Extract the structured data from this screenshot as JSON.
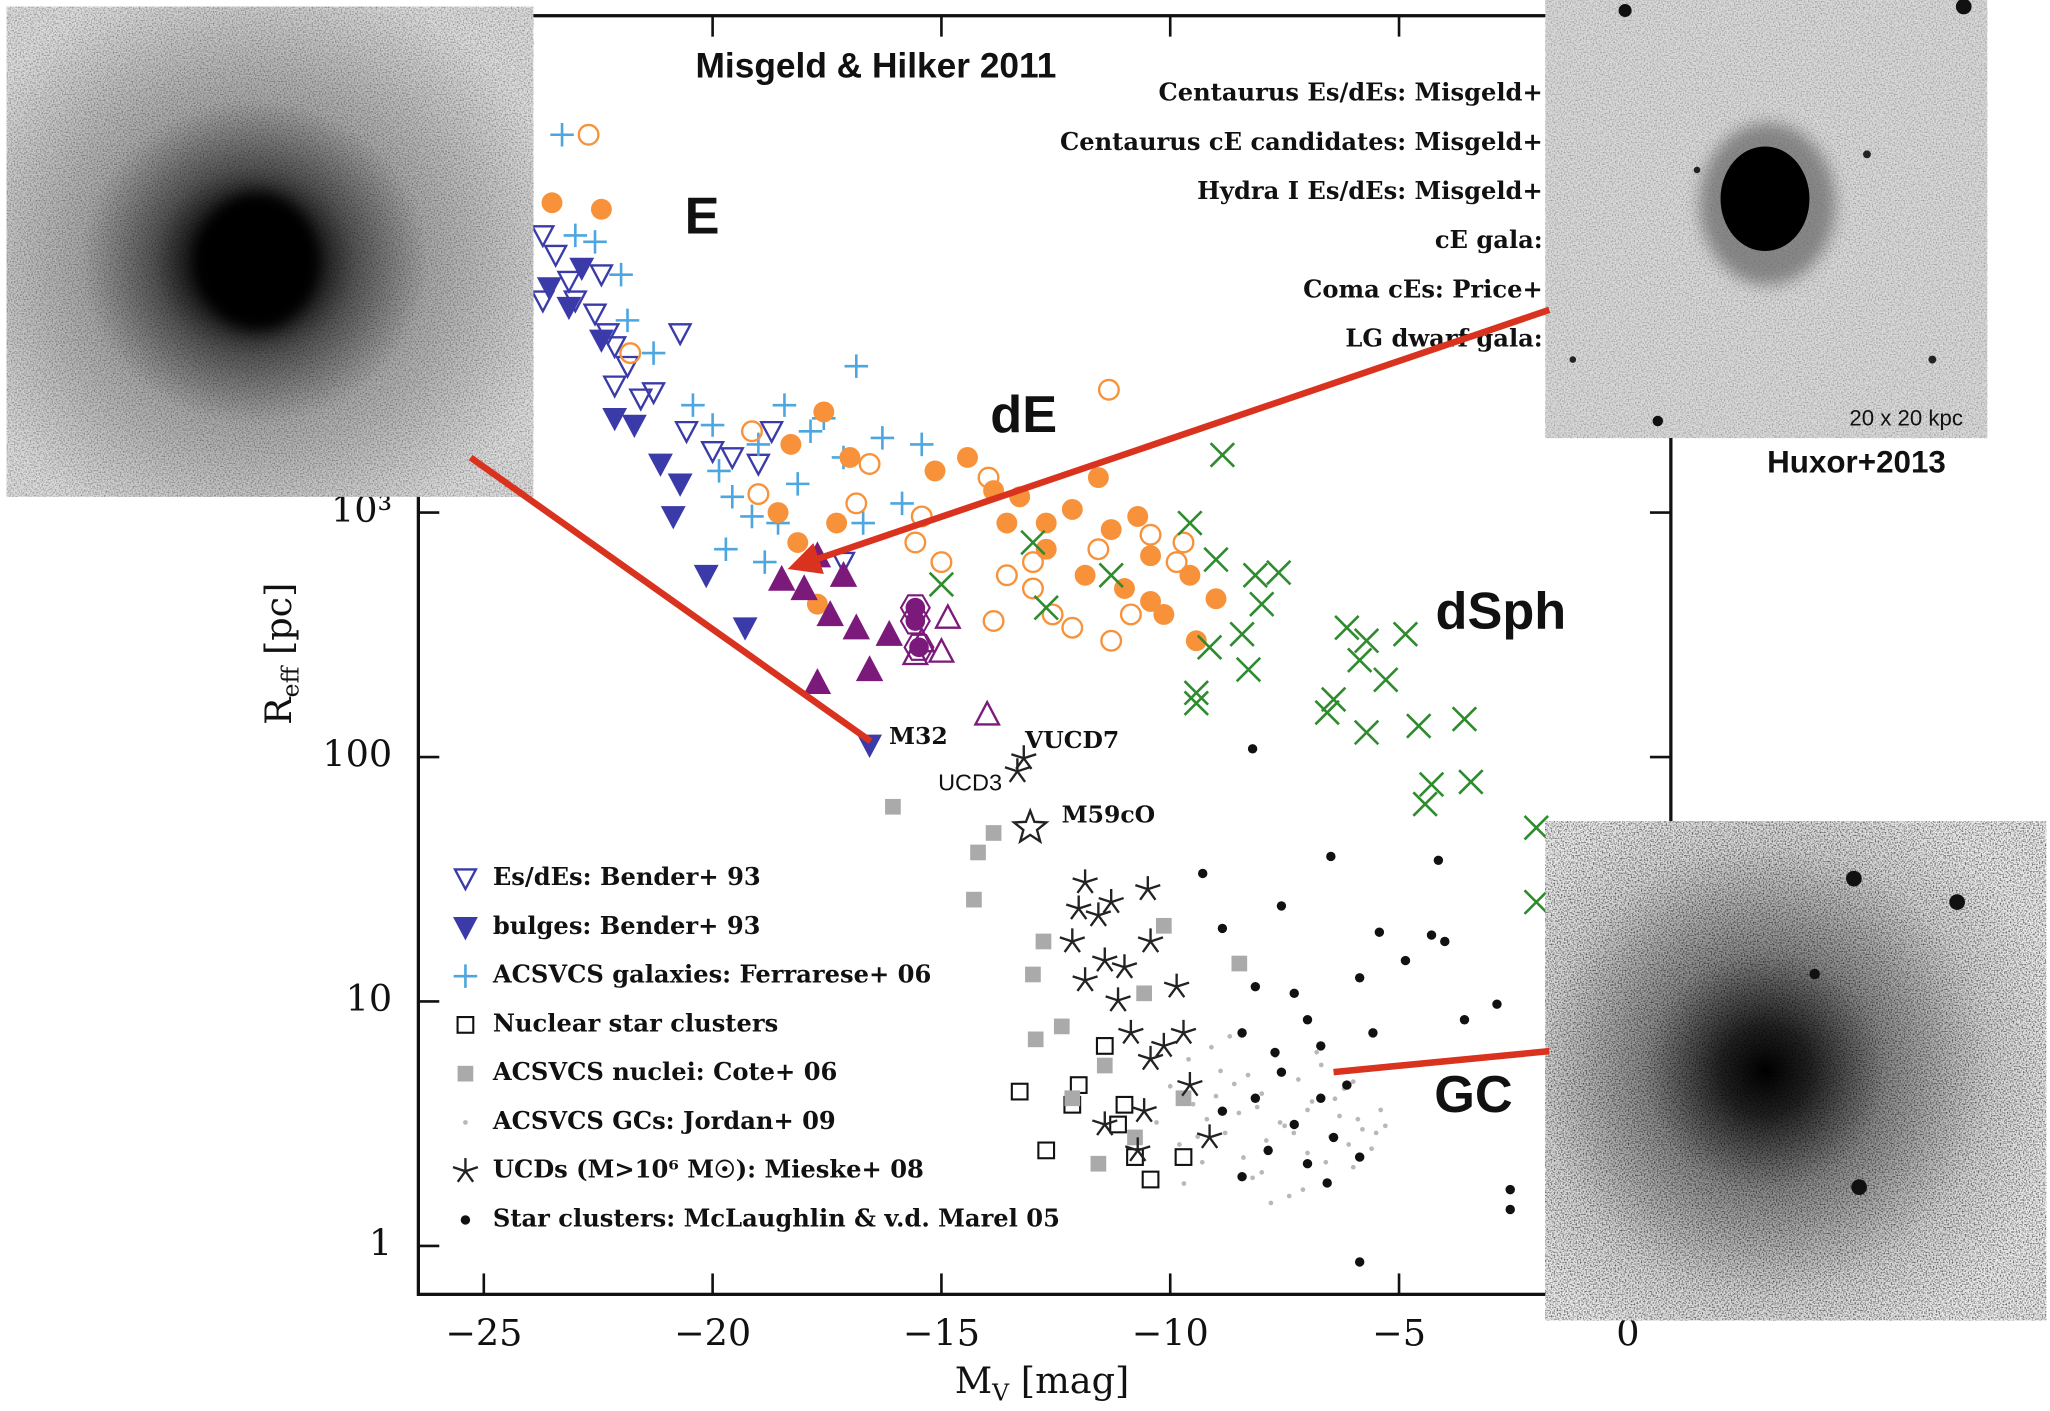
{
  "chart_data": {
    "type": "scatter",
    "title": "Misgeld & Hilker 2011",
    "xlabel": [
      "M",
      "V",
      " [mag]"
    ],
    "ylabel": [
      "R",
      "eff",
      " [pc]"
    ],
    "xlim": [
      -26.43,
      0.94
    ],
    "xticks": [
      {
        "value": -25,
        "label": "−25"
      },
      {
        "value": -20,
        "label": "−20"
      },
      {
        "value": -15,
        "label": "−15"
      },
      {
        "value": -10,
        "label": "−10"
      },
      {
        "value": -5,
        "label": "−5"
      },
      0
    ],
    "ylim": [
      0.634,
      107700
    ],
    "yscale": "log",
    "yticks": [
      1,
      10,
      100,
      {
        "value": 1000,
        "label": "10³"
      }
    ],
    "region_labels": [
      "E",
      "dE",
      "dSph",
      "GC"
    ],
    "point_labels": [
      "M32",
      "VUCD7",
      "UCD3",
      "M59cO"
    ],
    "series": [
      {
        "name": "Es/dEs: Bender+ 93",
        "legend": "lower left",
        "marker": "triangle-down-open",
        "color": "#3a3aa8",
        "x": [
          -23.71,
          -23.43,
          -23.14,
          -23.0,
          -22.57,
          -22.43,
          -22.29,
          -22.14,
          -21.86,
          -21.57,
          -21.29,
          -20.71,
          -20.57,
          -20.0,
          -19.57,
          -19.0,
          -18.71,
          -17.14,
          -22.14,
          -23.71
        ],
        "y": [
          13600,
          11300,
          8850,
          7350,
          6500,
          9400,
          5400,
          4780,
          3970,
          2920,
          3100,
          5400,
          2150,
          1780,
          1680,
          1580,
          2150,
          627,
          3300,
          7350
        ]
      },
      {
        "name": "bulges: Bender+ 93",
        "legend": "lower left",
        "marker": "triangle-down",
        "color": "#3a3aa8",
        "x": [
          -23.57,
          -23.14,
          -22.86,
          -22.43,
          -22.14,
          -21.71,
          -21.14,
          -20.71,
          -20.86,
          -20.14,
          -19.29,
          -16.57
        ],
        "y": [
          8320,
          6920,
          10000,
          5080,
          2430,
          2280,
          1580,
          1310,
          964,
          554,
          338,
          112
        ]
      },
      {
        "name": "ACSVCS galaxies: Ferrarese+ 06",
        "legend": "lower left",
        "marker": "plus",
        "color": "#4da6e0",
        "x": [
          -23.29,
          -23.0,
          -22.57,
          -22.0,
          -21.86,
          -21.29,
          -20.43,
          -20.0,
          -19.86,
          -19.57,
          -19.14,
          -19.0,
          -18.43,
          -18.14,
          -17.86,
          -17.57,
          -17.14,
          -16.86,
          -16.71,
          -16.29,
          -15.86,
          -15.43,
          -18.57,
          -19.71,
          -18.86
        ],
        "y": [
          35100,
          13600,
          12800,
          9400,
          6110,
          4490,
          2750,
          2280,
          1480,
          1160,
          964,
          1900,
          2750,
          1310,
          2150,
          2430,
          1680,
          3970,
          906,
          2020,
          1090,
          1900,
          906,
          708,
          627
        ]
      },
      {
        "name": "Nuclear star clusters",
        "legend": "lower left",
        "marker": "square-open",
        "color": "#111111",
        "x": [
          -13.29,
          -12.71,
          -12.0,
          -11.43,
          -11.14,
          -10.77,
          -10.43,
          -9.71,
          -11.0,
          -12.14
        ],
        "y": [
          4.28,
          2.46,
          4.55,
          6.58,
          3.14,
          2.31,
          1.87,
          2.31,
          3.78,
          3.78
        ]
      },
      {
        "name": "ACSVCS nuclei: Cote+ 06",
        "legend": "lower left",
        "marker": "square",
        "color": "#aaaaaa",
        "x": [
          -16.06,
          -13.86,
          -14.2,
          -14.29,
          -12.77,
          -13.0,
          -12.94,
          -12.37,
          -11.43,
          -12.14,
          -11.57,
          -10.77,
          -10.14,
          -8.49,
          -9.71,
          -10.57
        ],
        "y": [
          62.6,
          48.9,
          40.7,
          26.1,
          17.6,
          12.9,
          7.0,
          7.91,
          5.47,
          4.02,
          2.17,
          2.78,
          20.4,
          14.3,
          4.02,
          10.8
        ]
      },
      {
        "name": "ACSVCS GCs: Jordan+ 09",
        "legend": "lower left",
        "marker": "point",
        "color": "#b8b8b8",
        "x": [
          -10.3,
          -10.0,
          -9.8,
          -9.6,
          -9.5,
          -9.3,
          -9.1,
          -9.0,
          -8.8,
          -8.7,
          -8.5,
          -8.3,
          -8.2,
          -8.0,
          -7.9,
          -7.7,
          -7.5,
          -7.4,
          -7.2,
          -7.0,
          -6.9,
          -6.7,
          -6.5,
          -6.3,
          -6.2,
          -6.0,
          -5.8,
          -5.6,
          -5.4,
          -9.7,
          -9.2,
          -8.9,
          -8.4,
          -8.1,
          -7.8,
          -7.3,
          -6.8,
          -6.4,
          -6.1,
          -5.9,
          -5.5,
          -8.6,
          -7.6,
          -7.1,
          -6.6,
          -9.4,
          -8.0,
          -7.0,
          -6.0,
          -5.3
        ],
        "y": [
          3.2,
          4.5,
          2.6,
          5.8,
          3.8,
          2.2,
          6.5,
          4.1,
          2.9,
          7.2,
          3.5,
          5.0,
          1.9,
          4.2,
          2.7,
          6.0,
          3.1,
          1.6,
          4.8,
          2.4,
          3.9,
          5.5,
          2.8,
          3.4,
          4.4,
          2.1,
          3.0,
          2.5,
          3.6,
          1.8,
          3.3,
          5.2,
          2.3,
          3.7,
          1.5,
          2.9,
          6.2,
          4.0,
          2.6,
          3.3,
          2.9,
          4.6,
          3.2,
          1.7,
          2.2,
          2.8,
          2.0,
          3.6,
          4.7,
          3.1
        ]
      },
      {
        "name": "UCDs (M>10⁶ M☉): Mieske+ 08",
        "legend": "lower left",
        "marker": "asterisk",
        "color": "#222222",
        "x": [
          -11.86,
          -12.0,
          -11.57,
          -12.14,
          -11.29,
          -11.43,
          -11.86,
          -11.0,
          -11.14,
          -10.49,
          -10.43,
          -10.86,
          -10.14,
          -9.86,
          -9.71,
          -10.43,
          -11.43,
          -10.57,
          -9.57,
          -10.71,
          -9.14,
          -13.2,
          -13.34
        ],
        "y": [
          30.7,
          24.0,
          22.5,
          17.6,
          25.5,
          14.7,
          12.2,
          13.8,
          10.1,
          28.8,
          17.6,
          7.44,
          6.58,
          11.5,
          7.44,
          5.82,
          3.14,
          3.56,
          4.55,
          2.46,
          2.78,
          98.8,
          87.4
        ]
      },
      {
        "name": "Star clusters: McLaughlin & v.d. Marel 05",
        "legend": "lower left",
        "marker": "dot",
        "color": "#111111",
        "x": [
          -8.2,
          -6.49,
          -9.29,
          -4.14,
          -7.57,
          -5.43,
          -4.29,
          -4.86,
          -8.86,
          -4.0,
          -8.14,
          -7.29,
          -5.86,
          -7.0,
          -8.43,
          -6.71,
          -7.57,
          -6.14,
          -8.14,
          -7.29,
          -6.43,
          -7.86,
          -7.0,
          -5.86,
          -8.43,
          -6.57,
          -2.86,
          -3.57,
          -2.57,
          -2.57,
          -5.86,
          -6.71,
          -7.71,
          -5.57,
          -8.86
        ],
        "y": [
          108,
          39.2,
          33.4,
          37.8,
          24.6,
          19.2,
          18.7,
          14.7,
          19.9,
          17.6,
          11.5,
          10.8,
          12.5,
          8.42,
          7.44,
          6.58,
          5.14,
          4.55,
          4.02,
          3.14,
          2.78,
          2.46,
          2.17,
          2.31,
          1.92,
          1.81,
          9.75,
          8.42,
          1.7,
          1.41,
          0.86,
          4.02,
          6.19,
          7.44,
          3.56
        ]
      },
      {
        "name": "Centaurus Es/dEs: Misgeld+",
        "legend": "upper right",
        "marker": "circle",
        "color": "#f7923a",
        "x": [
          -23.51,
          -22.43,
          -17.57,
          -17.0,
          -18.29,
          -18.57,
          -17.71,
          -15.14,
          -14.43,
          -13.86,
          -13.29,
          -12.71,
          -12.14,
          -11.57,
          -11.29,
          -10.71,
          -10.43,
          -11.86,
          -11.0,
          -10.14,
          -9.57,
          -9.0,
          -9.43,
          -10.43,
          -12.71,
          -13.57,
          -18.14,
          -17.29
        ],
        "y": [
          18500,
          17400,
          2580,
          1680,
          1900,
          1000,
          422,
          1480,
          1680,
          1230,
          1160,
          906,
          1030,
          1390,
          852,
          964,
          666,
          554,
          489,
          383,
          554,
          444,
          299,
          433,
          708,
          906,
          754,
          906
        ]
      },
      {
        "name": "Centaurus cE candidates: Misgeld+",
        "legend": "upper right",
        "marker": "triangle-up",
        "color": "#7b1a7b",
        "x": [
          -18.49,
          -18.0,
          -17.71,
          -17.14,
          -17.43,
          -16.86,
          -16.14,
          -17.71,
          -16.57
        ],
        "y": [
          534,
          489,
          666,
          554,
          383,
          338,
          318,
          202,
          228
        ]
      },
      {
        "name": "Hydra I Es/dEs: Misgeld+",
        "legend": "upper right",
        "marker": "circle-open",
        "color": "#f7923a",
        "x": [
          -22.71,
          -21.8,
          -19.14,
          -19.0,
          -16.86,
          -16.57,
          -15.57,
          -15.43,
          -13.97,
          -13.86,
          -13.0,
          -13.0,
          -12.14,
          -11.57,
          -11.34,
          -11.29,
          -10.43,
          -9.86,
          -9.71,
          -13.57,
          -15.0,
          -12.57,
          -10.86
        ],
        "y": [
          35100,
          4490,
          2150,
          1190,
          1090,
          1580,
          754,
          964,
          1390,
          360,
          627,
          489,
          338,
          708,
          3180,
          299,
          811,
          627,
          754,
          554,
          627,
          383,
          383
        ]
      },
      {
        "name": "cE gala:",
        "legend": "upper right",
        "marker": "hexagon",
        "color": "#7b1a7b",
        "x": [
          -15.57,
          -15.49,
          -15.57
        ],
        "y": [
          360,
          281,
          408
        ]
      },
      {
        "name": "Coma cEs: Price+",
        "legend": "upper right",
        "marker": "triangle-up-open",
        "color": "#7b1a7b",
        "x": [
          -15.43,
          -15.0,
          -14.86,
          -14.0,
          -15.57
        ],
        "y": [
          299,
          271,
          373,
          150,
          265
        ]
      },
      {
        "name": "LG dwarf gala:",
        "legend": "upper right",
        "marker": "x",
        "color": "#2e8b2e",
        "x": [
          -8.86,
          -9.57,
          -9.0,
          -8.14,
          -7.63,
          -8.0,
          -8.43,
          -9.14,
          -9.43,
          -9.43,
          -8.29,
          -6.14,
          -5.71,
          -5.86,
          -5.29,
          -4.86,
          -6.43,
          -6.57,
          -5.71,
          -4.57,
          -3.57,
          -4.29,
          -4.43,
          -3.43,
          -2.0,
          -2.0,
          -15.0,
          -13.0,
          -11.29,
          -12.71
        ],
        "y": [
          1720,
          906,
          642,
          554,
          568,
          422,
          318,
          281,
          183,
          166,
          228,
          338,
          299,
          249,
          207,
          318,
          172,
          152,
          126,
          134,
          143,
          77.2,
          64.2,
          79.1,
          51.4,
          25.5,
          508,
          754,
          554,
          408
        ]
      },
      {
        "marker": "star-open",
        "color": "#222222",
        "x": [
          -13.06
        ],
        "y": [
          51.4
        ]
      }
    ]
  },
  "insets": {
    "scale_label": "20 x 20 kpc",
    "credit": "Huxor+2013"
  }
}
